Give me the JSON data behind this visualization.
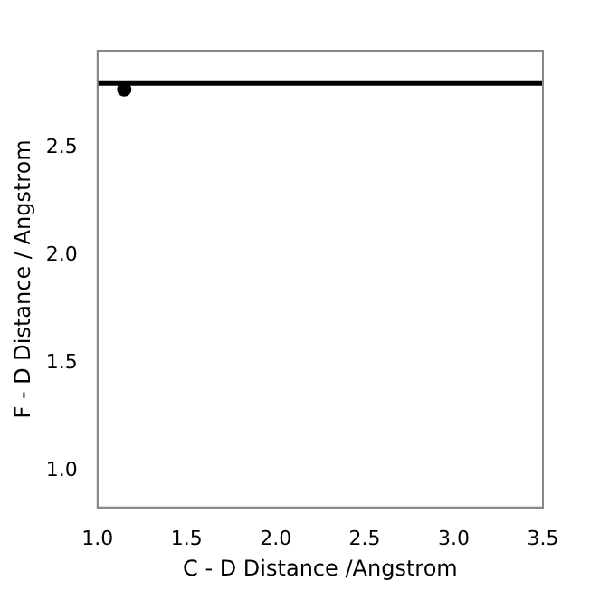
{
  "chart_data": {
    "type": "scatter",
    "xlabel": "C - D Distance /Angstrom",
    "ylabel": "F - D Distance / Angstrom",
    "series": [
      {
        "color": "#000000",
        "x": [
          1.15
        ],
        "values": [
          2.77
        ]
      }
    ],
    "xlim": [
      1.0,
      3.5
    ],
    "xticks": [
      {
        "value": 1,
        "label": "1.0"
      },
      1.5,
      {
        "value": 2,
        "label": "2.0"
      },
      2.5,
      {
        "value": 3,
        "label": "3.0"
      },
      3.5
    ],
    "ylim": [
      0.83,
      2.95
    ],
    "yticks": [
      {
        "value": 1,
        "label": "1.0"
      },
      1.5,
      {
        "value": 2,
        "label": "2.0"
      },
      2.5
    ],
    "ref_lines": [
      {
        "axis": "y",
        "value": 2.8,
        "color": "#000000",
        "line_style": "solid"
      }
    ],
    "marker": "circle",
    "grid": false,
    "legend": false
  }
}
